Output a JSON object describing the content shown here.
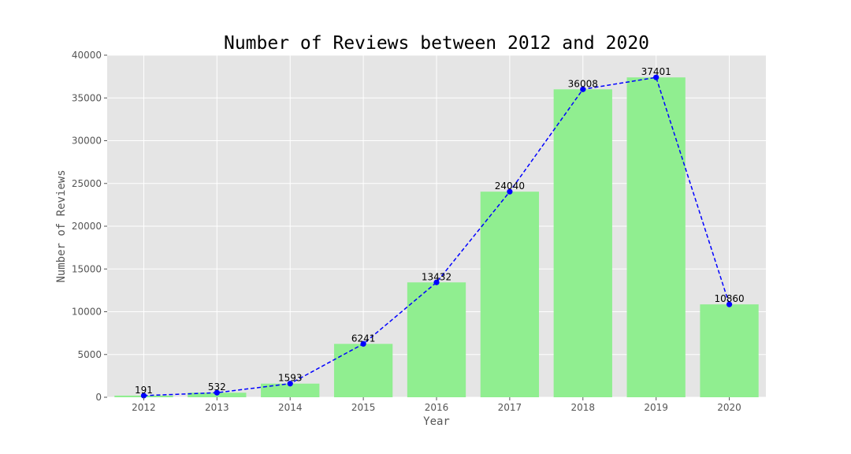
{
  "chart_data": {
    "type": "bar",
    "title": "Number of Reviews between 2012 and 2020",
    "xlabel": "Year",
    "ylabel": "Number of Reviews",
    "categories": [
      "2012",
      "2013",
      "2014",
      "2015",
      "2016",
      "2017",
      "2018",
      "2019",
      "2020"
    ],
    "values": [
      191,
      532,
      1593,
      6241,
      13432,
      24040,
      36008,
      37401,
      10860
    ],
    "ylim": [
      0,
      40000
    ],
    "yticks": [
      0,
      5000,
      10000,
      15000,
      20000,
      25000,
      30000,
      35000,
      40000
    ],
    "grid": true,
    "overlay": {
      "type": "line",
      "style": "dashed",
      "marker": "circle"
    },
    "colors": {
      "bar": "#90ee90",
      "line": "#0000ff",
      "plot_background": "#e5e5e5",
      "grid": "#ffffff"
    }
  }
}
